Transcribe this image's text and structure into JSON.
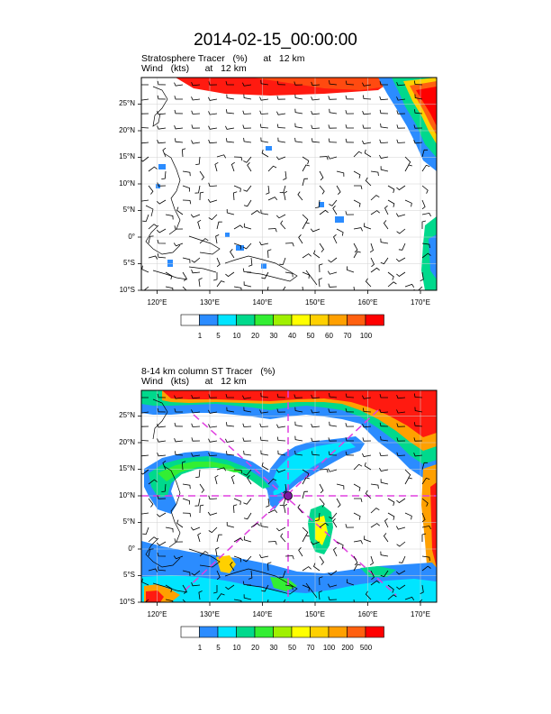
{
  "title": "2014-02-15_00:00:00",
  "panels": [
    {
      "id": "top",
      "line1": "Stratosphere Tracer   (%)      at   12 km",
      "line2": "Wind   (kts)      at   12 km",
      "lat_ticks": [
        "25°N",
        "20°N",
        "15°N",
        "10°N",
        "5°N",
        "0°",
        "5°S",
        "10°S"
      ],
      "lon_ticks": [
        "120°E",
        "130°E",
        "140°E",
        "150°E",
        "160°E",
        "170°E"
      ],
      "colorbar": {
        "labels": [
          "1",
          "5",
          "10",
          "20",
          "30",
          "40",
          "50",
          "60",
          "70",
          "100"
        ],
        "colors": [
          "#ffffff",
          "#2b8cff",
          "#00e5ff",
          "#00d98c",
          "#33ee33",
          "#a0f000",
          "#ffff00",
          "#ffd000",
          "#ffa000",
          "#ff6010",
          "#ff0000"
        ]
      }
    },
    {
      "id": "bottom",
      "line1": "8-14 km column ST Tracer   (%)",
      "line2": "Wind   (kts)      at   12 km",
      "lat_ticks": [
        "25°N",
        "20°N",
        "15°N",
        "10°N",
        "5°N",
        "0°",
        "5°S",
        "10°S"
      ],
      "lon_ticks": [
        "120°E",
        "130°E",
        "140°E",
        "150°E",
        "160°E",
        "170°E"
      ],
      "colorbar": {
        "labels": [
          "1",
          "5",
          "10",
          "20",
          "30",
          "50",
          "70",
          "100",
          "200",
          "500"
        ],
        "colors": [
          "#ffffff",
          "#2b8cff",
          "#00e5ff",
          "#00d98c",
          "#33ee33",
          "#a0f000",
          "#ffff00",
          "#ffd000",
          "#ffa000",
          "#ff6010",
          "#ff0000"
        ]
      }
    }
  ]
}
